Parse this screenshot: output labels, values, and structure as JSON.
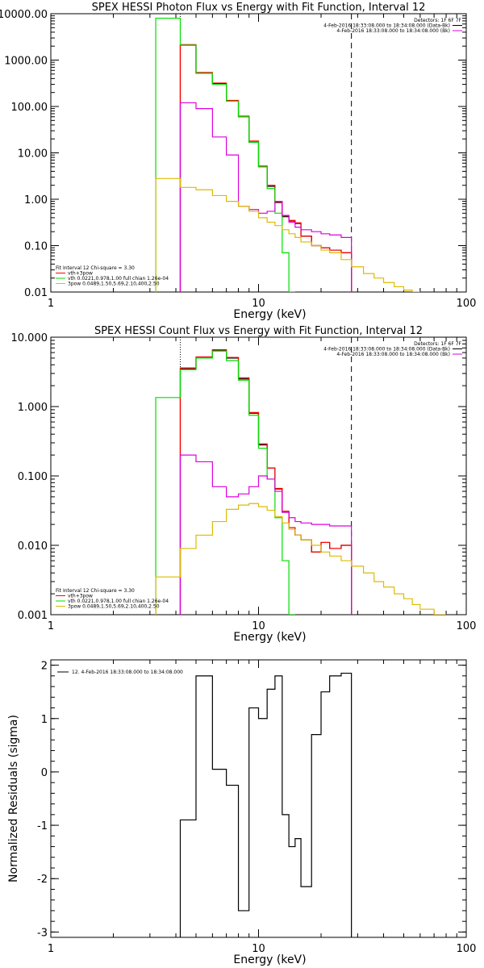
{
  "chart_data": [
    {
      "type": "line",
      "title": "SPEX HESSI Photon Flux vs Energy with Fit Function, Interval 12",
      "xlabel": "Energy (keV)",
      "ylabel": "",
      "x_scale": "log",
      "y_scale": "log",
      "xlim": [
        1,
        100
      ],
      "ylim": [
        0.01,
        10000
      ],
      "x_ticks": [
        {
          "v": 1,
          "label": "1"
        },
        {
          "v": 10,
          "label": "10"
        },
        {
          "v": 100,
          "label": "100"
        }
      ],
      "y_ticks": [
        {
          "v": 0.01,
          "label": "0.01"
        },
        {
          "v": 0.1,
          "label": "0.10"
        },
        {
          "v": 1,
          "label": "1.00"
        },
        {
          "v": 10,
          "label": "10.00"
        },
        {
          "v": 100,
          "label": "100.00"
        },
        {
          "v": 1000,
          "label": "1000.00"
        },
        {
          "v": 10000,
          "label": "10000.00"
        }
      ],
      "legend_top": [
        "Detectors: 1F 6F 7F",
        "4-Feb-2016 18:33:08.000 to 18:34:08.000 (Data-Bk)",
        "4-Feb-2016 18:33:08.000 to 18:34:08.000 (Bk)"
      ],
      "legend_bottom": [
        "Fit Interval 12   Chi-square = 3.30",
        "vth+3pow",
        "vth 0.0221,0.978,1.00  full chian 1.26e-04",
        "3pow 0.0489,1.50,5.69,2.10,400,2.50"
      ],
      "dotted_line_x": 4.2,
      "dashed_line_x": 28,
      "series": [
        {
          "key": "data",
          "color": "#000000",
          "edges": [
            4.2,
            5,
            6,
            7,
            8,
            9,
            10,
            11,
            12,
            13,
            14,
            15,
            16,
            18,
            20,
            22,
            25,
            28
          ],
          "values": [
            2100,
            520,
            310,
            130,
            60,
            17,
            5,
            1.9,
            0.85,
            0.42,
            0.34,
            0.3,
            0.16,
            0.1,
            0.09,
            0.08,
            0.07
          ]
        },
        {
          "key": "data_red",
          "color": "#ff0000",
          "edges": [
            4.2,
            5,
            6,
            7,
            8,
            9,
            10,
            11,
            12,
            13,
            14,
            15,
            16,
            18,
            20,
            22,
            25,
            28
          ],
          "values": [
            2150,
            540,
            320,
            135,
            62,
            18,
            5.2,
            2.0,
            0.88,
            0.44,
            0.35,
            0.31,
            0.16,
            0.1,
            0.09,
            0.08,
            0.07
          ]
        },
        {
          "key": "vth",
          "color": "#00dd00",
          "edges": [
            3.2,
            4.2,
            5,
            6,
            7,
            8,
            9,
            10,
            11,
            12,
            13,
            14,
            15
          ],
          "values": [
            8000,
            2100,
            520,
            300,
            130,
            60,
            17,
            5,
            1.7,
            0.5,
            0.07,
            0.01
          ]
        },
        {
          "key": "bkg",
          "color": "#dd00dd",
          "edges": [
            4.2,
            5,
            6,
            7,
            8,
            9,
            10,
            11,
            12,
            13,
            14,
            15,
            16,
            18,
            20,
            22,
            25,
            28
          ],
          "values": [
            120,
            90,
            22,
            9,
            0.7,
            0.6,
            0.5,
            0.55,
            0.9,
            0.45,
            0.32,
            0.25,
            0.22,
            0.2,
            0.18,
            0.17,
            0.15
          ]
        },
        {
          "key": "pow",
          "color": "#ddbb00",
          "edges": [
            3.2,
            4.2,
            5,
            6,
            7,
            8,
            9,
            10,
            11,
            12,
            13,
            14,
            15,
            16,
            18,
            20,
            22,
            25,
            28,
            32,
            36,
            40,
            45,
            50,
            55,
            60
          ],
          "values": [
            2.8,
            1.8,
            1.6,
            1.2,
            0.9,
            0.7,
            0.55,
            0.4,
            0.32,
            0.27,
            0.22,
            0.18,
            0.15,
            0.12,
            0.1,
            0.08,
            0.07,
            0.05,
            0.035,
            0.025,
            0.02,
            0.016,
            0.013,
            0.011,
            0.01
          ]
        }
      ]
    },
    {
      "type": "line",
      "title": "SPEX HESSI Count Flux vs Energy with Fit Function, Interval 12",
      "xlabel": "Energy (keV)",
      "ylabel": "",
      "x_scale": "log",
      "y_scale": "log",
      "xlim": [
        1,
        100
      ],
      "ylim": [
        0.001,
        10
      ],
      "x_ticks": [
        {
          "v": 1,
          "label": "1"
        },
        {
          "v": 10,
          "label": "10"
        },
        {
          "v": 100,
          "label": "100"
        }
      ],
      "y_ticks": [
        {
          "v": 0.001,
          "label": "0.001"
        },
        {
          "v": 0.01,
          "label": "0.010"
        },
        {
          "v": 0.1,
          "label": "0.100"
        },
        {
          "v": 1,
          "label": "1.000"
        },
        {
          "v": 10,
          "label": "10.000"
        }
      ],
      "legend_top": [
        "Detectors: 1F 6F 7F",
        "4-Feb-2016 18:33:08.000 to 18:34:08.000 (Data-Bk)",
        "4-Feb-2016 18:33:08.000 to 18:34:08.000 (Bk)"
      ],
      "legend_bottom": [
        "Fit Interval 12   Chi-square = 3.30",
        "vth+3pow",
        "vth 0.0221,0.978,1.00  full chian 1.26e-04",
        "3pow 0.0489,1.50,5.69,2.10,400,2.50"
      ],
      "dotted_line_x": 4.2,
      "dashed_line_x": 28,
      "series": [
        {
          "key": "data",
          "color": "#000000",
          "edges": [
            4.2,
            5,
            6,
            7,
            8,
            9,
            10,
            11,
            12,
            13,
            14,
            15,
            16,
            18,
            20,
            22,
            25,
            28
          ],
          "values": [
            3.5,
            5,
            6.5,
            5,
            2.5,
            0.8,
            0.28,
            0.13,
            0.065,
            0.03,
            0.018,
            0.014,
            0.012,
            0.008,
            0.011,
            0.009,
            0.01
          ]
        },
        {
          "key": "data_red",
          "color": "#ff0000",
          "edges": [
            4.2,
            5,
            6,
            7,
            8,
            9,
            10,
            11,
            12,
            13,
            14,
            15,
            16,
            18,
            20,
            22,
            25,
            28
          ],
          "values": [
            3.6,
            5.2,
            6.6,
            5.1,
            2.6,
            0.82,
            0.29,
            0.13,
            0.066,
            0.031,
            0.018,
            0.014,
            0.012,
            0.008,
            0.011,
            0.009,
            0.01
          ]
        },
        {
          "key": "vth",
          "color": "#00dd00",
          "edges": [
            3.2,
            4.2,
            5,
            6,
            7,
            8,
            9,
            10,
            11,
            12,
            13,
            14,
            15
          ],
          "values": [
            1.35,
            3.4,
            5,
            6.3,
            4.6,
            2.4,
            0.75,
            0.25,
            0.09,
            0.025,
            0.006,
            0.001
          ]
        },
        {
          "key": "bkg",
          "color": "#dd00dd",
          "edges": [
            4.2,
            5,
            6,
            7,
            8,
            9,
            10,
            11,
            12,
            13,
            14,
            15,
            16,
            18,
            20,
            22,
            25,
            28
          ],
          "values": [
            0.2,
            0.16,
            0.07,
            0.05,
            0.055,
            0.07,
            0.1,
            0.09,
            0.06,
            0.03,
            0.025,
            0.022,
            0.021,
            0.02,
            0.02,
            0.019,
            0.019
          ]
        },
        {
          "key": "pow",
          "color": "#ddbb00",
          "edges": [
            3.2,
            4.2,
            5,
            6,
            7,
            8,
            9,
            10,
            11,
            12,
            13,
            14,
            15,
            16,
            18,
            20,
            22,
            25,
            28,
            32,
            36,
            40,
            45,
            50,
            55,
            60,
            70,
            80
          ],
          "values": [
            0.0035,
            0.009,
            0.014,
            0.022,
            0.033,
            0.038,
            0.04,
            0.036,
            0.032,
            0.026,
            0.021,
            0.017,
            0.014,
            0.012,
            0.01,
            0.008,
            0.007,
            0.006,
            0.005,
            0.004,
            0.003,
            0.0025,
            0.002,
            0.0017,
            0.0014,
            0.0012,
            0.001
          ]
        }
      ]
    },
    {
      "type": "line",
      "title": "",
      "xlabel": "Energy (keV)",
      "ylabel": "Normalized Residuals (sigma)",
      "x_scale": "log",
      "y_scale": "linear",
      "xlim": [
        1,
        100
      ],
      "ylim": [
        -3.1,
        2.1
      ],
      "x_ticks": [
        {
          "v": 1,
          "label": "1"
        },
        {
          "v": 10,
          "label": "10"
        },
        {
          "v": 100,
          "label": "100"
        }
      ],
      "y_ticks": [
        {
          "v": -3,
          "label": "-3"
        },
        {
          "v": -2,
          "label": "-2"
        },
        {
          "v": -1,
          "label": "-1"
        },
        {
          "v": 0,
          "label": "0"
        },
        {
          "v": 1,
          "label": "1"
        },
        {
          "v": 2,
          "label": "2"
        }
      ],
      "legend": [
        "12.  4-Feb-2016 18:33:08.000 to 18:34:08.000"
      ],
      "series": [
        {
          "key": "residuals",
          "color": "#000000",
          "edges": [
            4.2,
            5,
            6,
            7,
            8,
            9,
            10,
            11,
            12,
            13,
            14,
            15,
            16,
            18,
            20,
            22,
            25,
            28
          ],
          "values": [
            -0.9,
            1.8,
            0.05,
            -0.25,
            -2.6,
            1.2,
            1.0,
            1.55,
            1.8,
            -0.8,
            -1.4,
            -1.25,
            -2.15,
            0.7,
            1.5,
            1.8,
            1.85
          ]
        }
      ]
    }
  ]
}
